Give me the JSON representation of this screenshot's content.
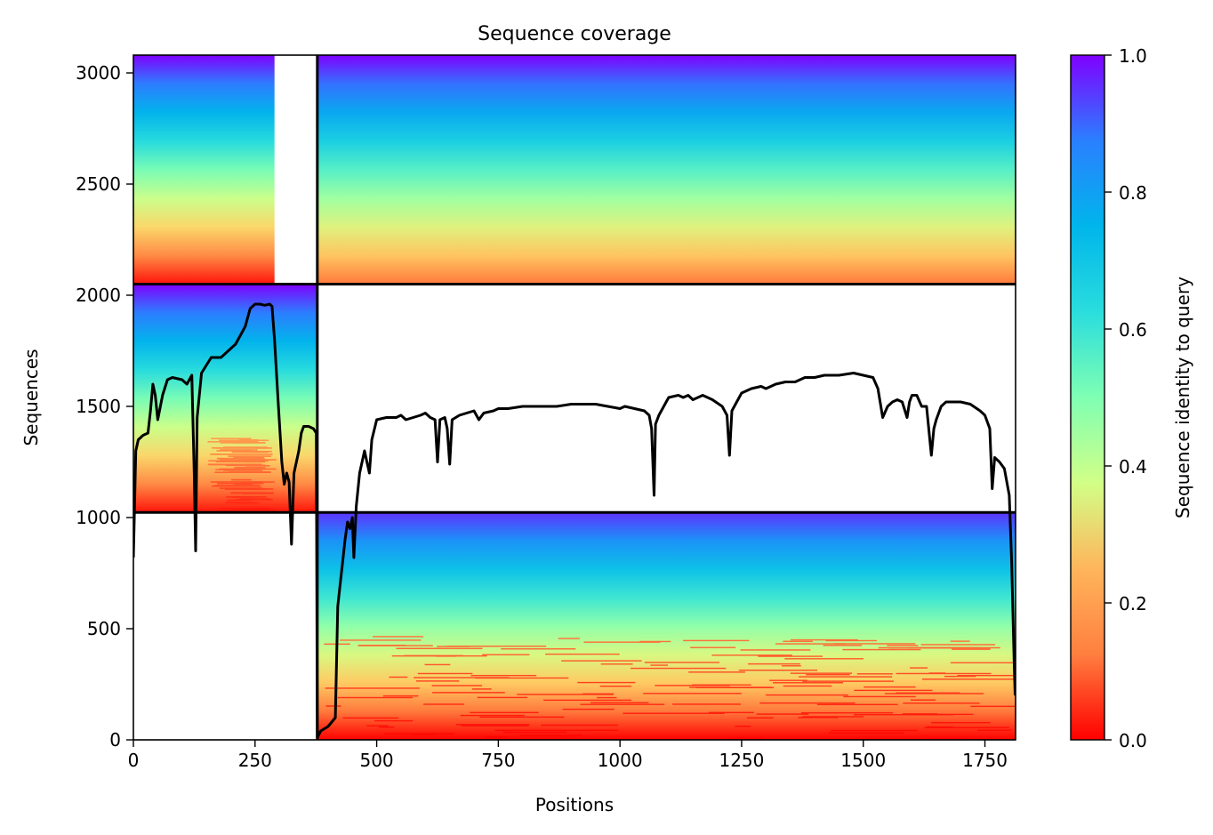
{
  "chart_data": {
    "type": "heatmap",
    "title": "Sequence coverage",
    "xlabel": "Positions",
    "ylabel": "Sequences",
    "xlim": [
      0,
      1813
    ],
    "ylim": [
      0,
      3080
    ],
    "x_ticks": [
      0,
      250,
      500,
      750,
      1000,
      1250,
      1500,
      1750
    ],
    "y_ticks": [
      0,
      500,
      1000,
      1500,
      2000,
      2500,
      3000
    ],
    "colorbar": {
      "label": "Sequence identity to query",
      "colormap": "rainbow",
      "range": [
        0,
        1
      ],
      "ticks": [
        0.0,
        0.2,
        0.4,
        0.6,
        0.8,
        1.0
      ],
      "tick_labels": [
        "0.0",
        "0.2",
        "0.4",
        "0.6",
        "0.8",
        "1.0"
      ],
      "colors": [
        "#ff0000",
        "#ff7f3f",
        "#ffd267",
        "#d2ff87",
        "#7fffb3",
        "#2adddd",
        "#00b5eb",
        "#2a80ff",
        "#7f00ff"
      ]
    },
    "chain_boundaries": {
      "x": [
        378
      ],
      "y": [
        1023,
        2050
      ]
    },
    "blocks": [
      {
        "name": "chain-A-hits",
        "x": [
          0,
          378
        ],
        "y": [
          2050,
          3080
        ],
        "identity_top": 1.0,
        "identity_bottom": 0.02,
        "fill_end_x": 290
      },
      {
        "name": "chain-B-hits-top",
        "x": [
          378,
          1813
        ],
        "y": [
          2050,
          3080
        ],
        "identity_top": 1.0,
        "identity_bottom": 0.12
      },
      {
        "name": "chain-A-hits-mid",
        "x": [
          0,
          378
        ],
        "y": [
          1023,
          2050
        ],
        "identity_top": 1.0,
        "identity_bottom": 0.02
      },
      {
        "name": "chain-B-hits",
        "x": [
          378,
          1813
        ],
        "y": [
          0,
          1023
        ],
        "identity_top": 0.95,
        "identity_bottom": 0.0
      }
    ],
    "coverage_line": {
      "color": "#000000",
      "points": [
        [
          0,
          820
        ],
        [
          5,
          1300
        ],
        [
          10,
          1350
        ],
        [
          20,
          1370
        ],
        [
          30,
          1380
        ],
        [
          35,
          1480
        ],
        [
          40,
          1600
        ],
        [
          45,
          1550
        ],
        [
          50,
          1440
        ],
        [
          60,
          1550
        ],
        [
          70,
          1620
        ],
        [
          80,
          1630
        ],
        [
          100,
          1620
        ],
        [
          110,
          1600
        ],
        [
          120,
          1640
        ],
        [
          125,
          1200
        ],
        [
          128,
          850
        ],
        [
          131,
          1450
        ],
        [
          140,
          1650
        ],
        [
          160,
          1720
        ],
        [
          180,
          1720
        ],
        [
          200,
          1760
        ],
        [
          210,
          1780
        ],
        [
          220,
          1820
        ],
        [
          230,
          1860
        ],
        [
          240,
          1940
        ],
        [
          250,
          1960
        ],
        [
          260,
          1960
        ],
        [
          270,
          1955
        ],
        [
          280,
          1960
        ],
        [
          285,
          1950
        ],
        [
          290,
          1800
        ],
        [
          298,
          1500
        ],
        [
          305,
          1250
        ],
        [
          310,
          1150
        ],
        [
          315,
          1200
        ],
        [
          320,
          1160
        ],
        [
          325,
          880
        ],
        [
          330,
          1200
        ],
        [
          340,
          1300
        ],
        [
          345,
          1380
        ],
        [
          350,
          1410
        ],
        [
          360,
          1410
        ],
        [
          370,
          1400
        ],
        [
          376,
          1380
        ],
        [
          378,
          10
        ],
        [
          385,
          40
        ],
        [
          400,
          60
        ],
        [
          415,
          100
        ],
        [
          420,
          600
        ],
        [
          425,
          700
        ],
        [
          430,
          800
        ],
        [
          435,
          900
        ],
        [
          440,
          980
        ],
        [
          445,
          950
        ],
        [
          450,
          1000
        ],
        [
          453,
          820
        ],
        [
          458,
          1050
        ],
        [
          465,
          1200
        ],
        [
          475,
          1300
        ],
        [
          480,
          1250
        ],
        [
          485,
          1200
        ],
        [
          490,
          1350
        ],
        [
          500,
          1440
        ],
        [
          520,
          1450
        ],
        [
          540,
          1450
        ],
        [
          550,
          1460
        ],
        [
          560,
          1440
        ],
        [
          575,
          1450
        ],
        [
          590,
          1460
        ],
        [
          600,
          1470
        ],
        [
          610,
          1450
        ],
        [
          620,
          1440
        ],
        [
          625,
          1250
        ],
        [
          630,
          1440
        ],
        [
          640,
          1450
        ],
        [
          645,
          1400
        ],
        [
          650,
          1240
        ],
        [
          655,
          1440
        ],
        [
          670,
          1460
        ],
        [
          700,
          1480
        ],
        [
          710,
          1440
        ],
        [
          720,
          1470
        ],
        [
          740,
          1480
        ],
        [
          750,
          1490
        ],
        [
          770,
          1490
        ],
        [
          800,
          1500
        ],
        [
          830,
          1500
        ],
        [
          870,
          1500
        ],
        [
          900,
          1510
        ],
        [
          950,
          1510
        ],
        [
          1000,
          1490
        ],
        [
          1010,
          1500
        ],
        [
          1050,
          1480
        ],
        [
          1060,
          1460
        ],
        [
          1065,
          1400
        ],
        [
          1070,
          1100
        ],
        [
          1073,
          1420
        ],
        [
          1080,
          1460
        ],
        [
          1100,
          1540
        ],
        [
          1120,
          1550
        ],
        [
          1130,
          1540
        ],
        [
          1140,
          1550
        ],
        [
          1150,
          1530
        ],
        [
          1170,
          1550
        ],
        [
          1190,
          1530
        ],
        [
          1210,
          1500
        ],
        [
          1220,
          1460
        ],
        [
          1225,
          1280
        ],
        [
          1230,
          1480
        ],
        [
          1250,
          1560
        ],
        [
          1270,
          1580
        ],
        [
          1290,
          1590
        ],
        [
          1300,
          1580
        ],
        [
          1320,
          1600
        ],
        [
          1340,
          1610
        ],
        [
          1360,
          1610
        ],
        [
          1380,
          1630
        ],
        [
          1400,
          1630
        ],
        [
          1420,
          1640
        ],
        [
          1450,
          1640
        ],
        [
          1480,
          1650
        ],
        [
          1500,
          1640
        ],
        [
          1520,
          1630
        ],
        [
          1530,
          1580
        ],
        [
          1540,
          1450
        ],
        [
          1550,
          1500
        ],
        [
          1560,
          1520
        ],
        [
          1570,
          1530
        ],
        [
          1580,
          1520
        ],
        [
          1590,
          1450
        ],
        [
          1595,
          1520
        ],
        [
          1600,
          1550
        ],
        [
          1610,
          1550
        ],
        [
          1620,
          1500
        ],
        [
          1630,
          1500
        ],
        [
          1640,
          1280
        ],
        [
          1645,
          1400
        ],
        [
          1650,
          1440
        ],
        [
          1660,
          1500
        ],
        [
          1670,
          1520
        ],
        [
          1700,
          1520
        ],
        [
          1720,
          1510
        ],
        [
          1740,
          1480
        ],
        [
          1750,
          1460
        ],
        [
          1760,
          1400
        ],
        [
          1765,
          1130
        ],
        [
          1770,
          1270
        ],
        [
          1780,
          1250
        ],
        [
          1790,
          1220
        ],
        [
          1800,
          1100
        ],
        [
          1805,
          800
        ],
        [
          1810,
          350
        ],
        [
          1812,
          200
        ]
      ]
    }
  }
}
